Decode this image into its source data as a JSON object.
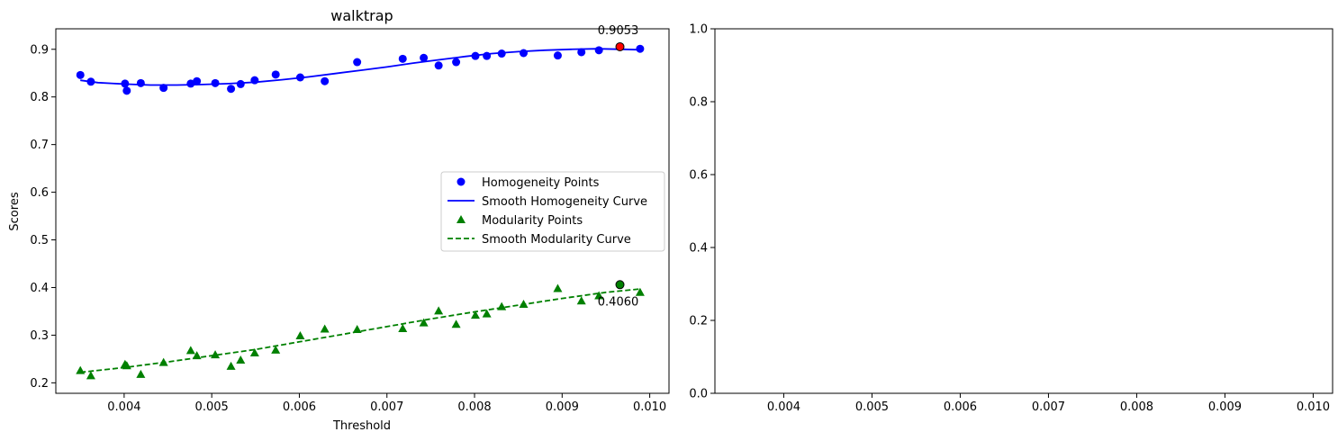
{
  "chart_data": [
    {
      "type": "scatter",
      "title": "walktrap",
      "xlabel": "Threshold",
      "ylabel": "Scores",
      "xlim": [
        0.00322,
        0.01022
      ],
      "ylim": [
        0.178,
        0.943
      ],
      "xticks": [
        "0.004",
        "0.005",
        "0.006",
        "0.007",
        "0.008",
        "0.009",
        "0.010"
      ],
      "xtick_values": [
        0.004,
        0.005,
        0.006,
        0.007,
        0.008,
        0.009,
        0.01
      ],
      "yticks": [
        "0.2",
        "0.3",
        "0.4",
        "0.5",
        "0.6",
        "0.7",
        "0.8",
        "0.9"
      ],
      "ytick_values": [
        0.2,
        0.3,
        0.4,
        0.5,
        0.6,
        0.7,
        0.8,
        0.9
      ],
      "grid": false,
      "legend_position": "center-right",
      "legend": [
        "Homogeneity Points",
        "Smooth Homogeneity Curve",
        "Modularity Points",
        "Smooth Modularity Curve"
      ],
      "series": [
        {
          "name": "Homogeneity Points",
          "kind": "scatter",
          "marker": "circle",
          "color": "#0000ff",
          "x": [
            0.0035,
            0.00362,
            0.00401,
            0.00403,
            0.00419,
            0.00445,
            0.00476,
            0.00483,
            0.00504,
            0.00522,
            0.00533,
            0.00549,
            0.00573,
            0.00601,
            0.00629,
            0.00666,
            0.00718,
            0.00742,
            0.00759,
            0.00779,
            0.00801,
            0.00814,
            0.00831,
            0.00856,
            0.00895,
            0.00922,
            0.00942,
            0.00989
          ],
          "y": [
            0.846,
            0.832,
            0.828,
            0.813,
            0.829,
            0.819,
            0.828,
            0.833,
            0.829,
            0.817,
            0.827,
            0.835,
            0.847,
            0.841,
            0.833,
            0.873,
            0.88,
            0.882,
            0.866,
            0.873,
            0.886,
            0.886,
            0.891,
            0.892,
            0.887,
            0.894,
            0.898,
            0.901
          ]
        },
        {
          "name": "Smooth Homogeneity Curve",
          "kind": "line",
          "style": "solid",
          "color": "#0000ff",
          "x": [
            0.0035,
            0.0037,
            0.004,
            0.0043,
            0.0046,
            0.0049,
            0.0052,
            0.0055,
            0.0058,
            0.0061,
            0.0064,
            0.0067,
            0.007,
            0.0073,
            0.0076,
            0.0079,
            0.0082,
            0.0085,
            0.0088,
            0.0091,
            0.0094,
            0.0097,
            0.00989
          ],
          "y": [
            0.835,
            0.83,
            0.827,
            0.825,
            0.825,
            0.826,
            0.828,
            0.831,
            0.836,
            0.842,
            0.849,
            0.856,
            0.863,
            0.871,
            0.878,
            0.885,
            0.891,
            0.895,
            0.898,
            0.9,
            0.901,
            0.9,
            0.899
          ]
        },
        {
          "name": "Modularity Points",
          "kind": "scatter",
          "marker": "triangle",
          "color": "#008000",
          "x": [
            0.0035,
            0.00362,
            0.00401,
            0.00403,
            0.00419,
            0.00445,
            0.00476,
            0.00483,
            0.00504,
            0.00522,
            0.00533,
            0.00549,
            0.00573,
            0.00601,
            0.00629,
            0.00666,
            0.00718,
            0.00742,
            0.00759,
            0.00779,
            0.00801,
            0.00814,
            0.00831,
            0.00856,
            0.00895,
            0.00922,
            0.00942,
            0.00989
          ],
          "y": [
            0.226,
            0.215,
            0.239,
            0.236,
            0.218,
            0.243,
            0.268,
            0.257,
            0.259,
            0.235,
            0.248,
            0.263,
            0.269,
            0.299,
            0.313,
            0.312,
            0.314,
            0.326,
            0.351,
            0.323,
            0.342,
            0.345,
            0.36,
            0.365,
            0.398,
            0.372,
            0.383,
            0.39
          ]
        },
        {
          "name": "Smooth Modularity Curve",
          "kind": "line",
          "style": "dashed",
          "color": "#008000",
          "x": [
            0.0035,
            0.004,
            0.0045,
            0.005,
            0.0055,
            0.006,
            0.0065,
            0.007,
            0.0075,
            0.008,
            0.0085,
            0.009,
            0.0095,
            0.00989
          ],
          "y": [
            0.222,
            0.232,
            0.244,
            0.257,
            0.27,
            0.286,
            0.302,
            0.318,
            0.334,
            0.349,
            0.363,
            0.377,
            0.39,
            0.397
          ]
        }
      ],
      "highlights": [
        {
          "x": 0.00966,
          "y": 0.9053,
          "label": "0.9053",
          "color": "#ff0000",
          "label_position": "above"
        },
        {
          "x": 0.00966,
          "y": 0.406,
          "label": "0.4060",
          "color": "#008000",
          "label_position": "below"
        }
      ]
    },
    {
      "type": "scatter",
      "title": "",
      "xlabel": "",
      "ylabel": "",
      "xlim": [
        0.00322,
        0.01022
      ],
      "ylim": [
        0.0,
        1.0
      ],
      "xticks": [
        "0.004",
        "0.005",
        "0.006",
        "0.007",
        "0.008",
        "0.009",
        "0.010"
      ],
      "xtick_values": [
        0.004,
        0.005,
        0.006,
        0.007,
        0.008,
        0.009,
        0.01
      ],
      "yticks": [
        "0.0",
        "0.2",
        "0.4",
        "0.6",
        "0.8",
        "1.0"
      ],
      "ytick_values": [
        0.0,
        0.2,
        0.4,
        0.6,
        0.8,
        1.0
      ],
      "grid": false,
      "series": []
    }
  ]
}
